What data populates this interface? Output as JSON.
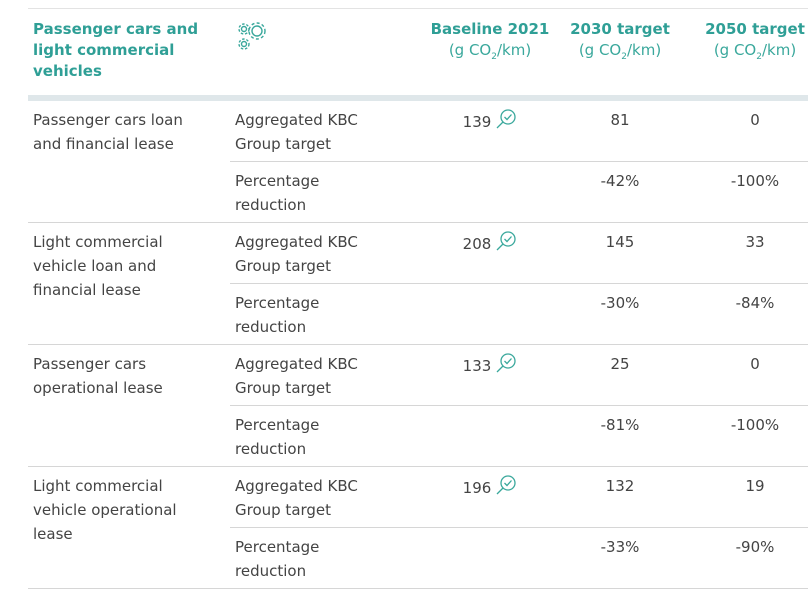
{
  "header": {
    "title": "Passenger cars and light commercial vehicles",
    "columns": [
      {
        "title": "Baseline 2021",
        "unit": {
          "pre": "(g CO",
          "sub": "2",
          "post": "/km)"
        }
      },
      {
        "title": "2030 target",
        "unit": {
          "pre": "(g CO",
          "sub": "2",
          "post": "/km)"
        }
      },
      {
        "title": "2050 target",
        "unit": {
          "pre": "(g CO",
          "sub": "2",
          "post": "/km)"
        }
      }
    ]
  },
  "table": {
    "groups": [
      {
        "label": "Passenger cars loan and financial lease",
        "rows": [
          {
            "metric": "Aggregated KBC Group target",
            "baseline": "139",
            "t2030": "81",
            "t2050": "0"
          },
          {
            "metric": "Percentage reduction",
            "t2030": "-42%",
            "t2050": "-100%"
          }
        ]
      },
      {
        "label": "Light commercial vehicle loan and financial lease",
        "rows": [
          {
            "metric": "Aggregated KBC Group target",
            "baseline": "208",
            "t2030": "145",
            "t2050": "33"
          },
          {
            "metric": "Percentage reduction",
            "t2030": "-30%",
            "t2050": "-84%"
          }
        ]
      },
      {
        "label": "Passenger cars operational lease",
        "rows": [
          {
            "metric": "Aggregated KBC Group target",
            "baseline": "133",
            "t2030": "25",
            "t2050": "0"
          },
          {
            "metric": "Percentage reduction",
            "t2030": "-81%",
            "t2050": "-100%"
          }
        ]
      },
      {
        "label": "Light commercial vehicle operational lease",
        "rows": [
          {
            "metric": "Aggregated KBC Group target",
            "baseline": "196",
            "t2030": "132",
            "t2050": "19"
          },
          {
            "metric": "Percentage reduction",
            "t2030": "-33%",
            "t2050": "-90%"
          }
        ]
      }
    ]
  }
}
